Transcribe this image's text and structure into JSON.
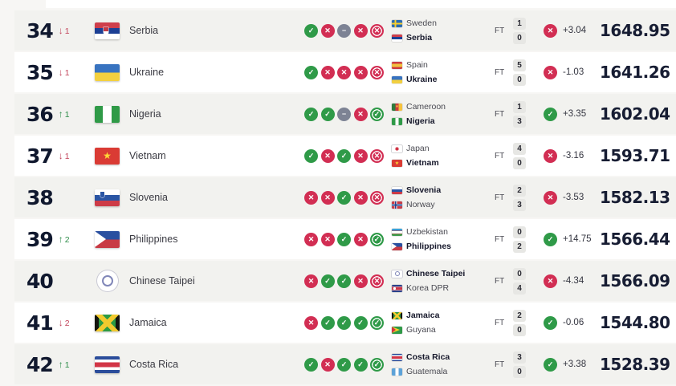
{
  "icons": {
    "win": "✓",
    "loss": "✕",
    "draw": "−",
    "up": "↑",
    "down": "↓"
  },
  "colors": {
    "win": "#2f9a48",
    "loss": "#d22e53",
    "draw": "#7d8394",
    "rank_up": "#2d8c49",
    "rank_down": "#c2455c"
  },
  "match_status_label": "FT",
  "rows": [
    {
      "rank": "34",
      "change": {
        "dir": "down",
        "value": "1"
      },
      "team": {
        "name": "Serbia",
        "flag": "rs"
      },
      "form": [
        "W",
        "L",
        "D",
        "L",
        "L"
      ],
      "match": {
        "status": "FT",
        "home": {
          "name": "Sweden",
          "flag": "se",
          "score": "1",
          "bold": false
        },
        "away": {
          "name": "Serbia",
          "flag": "rs",
          "score": "0",
          "bold": true
        }
      },
      "delta": {
        "result": "loss",
        "value": "+3.04"
      },
      "points": "1648.95",
      "shade": "gray"
    },
    {
      "rank": "35",
      "change": {
        "dir": "down",
        "value": "1"
      },
      "team": {
        "name": "Ukraine",
        "flag": "ua"
      },
      "form": [
        "W",
        "L",
        "L",
        "L",
        "L"
      ],
      "match": {
        "status": "FT",
        "home": {
          "name": "Spain",
          "flag": "es",
          "score": "5",
          "bold": false
        },
        "away": {
          "name": "Ukraine",
          "flag": "ua",
          "score": "0",
          "bold": true
        }
      },
      "delta": {
        "result": "loss",
        "value": "-1.03"
      },
      "points": "1641.26",
      "shade": "white"
    },
    {
      "rank": "36",
      "change": {
        "dir": "up",
        "value": "1"
      },
      "team": {
        "name": "Nigeria",
        "flag": "ng"
      },
      "form": [
        "W",
        "W",
        "D",
        "L",
        "W"
      ],
      "match": {
        "status": "FT",
        "home": {
          "name": "Cameroon",
          "flag": "cm",
          "score": "1",
          "bold": false
        },
        "away": {
          "name": "Nigeria",
          "flag": "ng",
          "score": "3",
          "bold": true
        }
      },
      "delta": {
        "result": "win",
        "value": "+3.35"
      },
      "points": "1602.04",
      "shade": "gray"
    },
    {
      "rank": "37",
      "change": {
        "dir": "down",
        "value": "1"
      },
      "team": {
        "name": "Vietnam",
        "flag": "vn"
      },
      "form": [
        "W",
        "L",
        "W",
        "L",
        "L"
      ],
      "match": {
        "status": "FT",
        "home": {
          "name": "Japan",
          "flag": "jp",
          "score": "4",
          "bold": false
        },
        "away": {
          "name": "Vietnam",
          "flag": "vn",
          "score": "0",
          "bold": true
        }
      },
      "delta": {
        "result": "loss",
        "value": "-3.16"
      },
      "points": "1593.71",
      "shade": "white"
    },
    {
      "rank": "38",
      "change": null,
      "team": {
        "name": "Slovenia",
        "flag": "si"
      },
      "form": [
        "L",
        "L",
        "W",
        "L",
        "L"
      ],
      "match": {
        "status": "FT",
        "home": {
          "name": "Slovenia",
          "flag": "si",
          "score": "2",
          "bold": true
        },
        "away": {
          "name": "Norway",
          "flag": "no",
          "score": "3",
          "bold": false
        }
      },
      "delta": {
        "result": "loss",
        "value": "-3.53"
      },
      "points": "1582.13",
      "shade": "gray"
    },
    {
      "rank": "39",
      "change": {
        "dir": "up",
        "value": "2"
      },
      "team": {
        "name": "Philippines",
        "flag": "ph"
      },
      "form": [
        "L",
        "L",
        "W",
        "L",
        "W"
      ],
      "match": {
        "status": "FT",
        "home": {
          "name": "Uzbekistan",
          "flag": "uz",
          "score": "0",
          "bold": false
        },
        "away": {
          "name": "Philippines",
          "flag": "ph",
          "score": "2",
          "bold": true
        }
      },
      "delta": {
        "result": "win",
        "value": "+14.75"
      },
      "points": "1566.44",
      "shade": "white"
    },
    {
      "rank": "40",
      "change": null,
      "team": {
        "name": "Chinese Taipei",
        "flag": "tw"
      },
      "form": [
        "L",
        "W",
        "W",
        "L",
        "L"
      ],
      "match": {
        "status": "FT",
        "home": {
          "name": "Chinese Taipei",
          "flag": "tw",
          "score": "0",
          "bold": true
        },
        "away": {
          "name": "Korea DPR",
          "flag": "kp",
          "score": "4",
          "bold": false
        }
      },
      "delta": {
        "result": "loss",
        "value": "-4.34"
      },
      "points": "1566.09",
      "shade": "gray"
    },
    {
      "rank": "41",
      "change": {
        "dir": "down",
        "value": "2"
      },
      "team": {
        "name": "Jamaica",
        "flag": "jm"
      },
      "form": [
        "L",
        "W",
        "W",
        "W",
        "W"
      ],
      "match": {
        "status": "FT",
        "home": {
          "name": "Jamaica",
          "flag": "jm",
          "score": "2",
          "bold": true
        },
        "away": {
          "name": "Guyana",
          "flag": "gy",
          "score": "0",
          "bold": false
        }
      },
      "delta": {
        "result": "win",
        "value": "-0.06"
      },
      "points": "1544.80",
      "shade": "white"
    },
    {
      "rank": "42",
      "change": {
        "dir": "up",
        "value": "1"
      },
      "team": {
        "name": "Costa Rica",
        "flag": "cr"
      },
      "form": [
        "W",
        "L",
        "W",
        "W",
        "W"
      ],
      "match": {
        "status": "FT",
        "home": {
          "name": "Costa Rica",
          "flag": "cr",
          "score": "3",
          "bold": true
        },
        "away": {
          "name": "Guatemala",
          "flag": "gt",
          "score": "0",
          "bold": false
        }
      },
      "delta": {
        "result": "win",
        "value": "+3.38"
      },
      "points": "1528.39",
      "shade": "gray"
    }
  ]
}
